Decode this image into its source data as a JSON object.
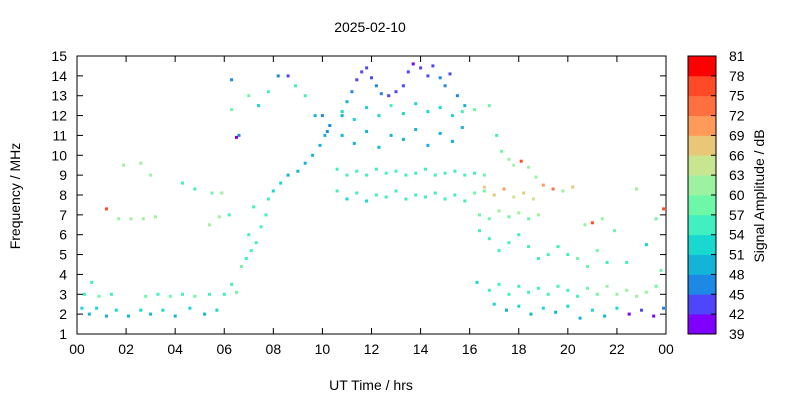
{
  "chart_data": {
    "type": "heatmap",
    "title": "2025-02-10",
    "xlabel": "UT Time / hrs",
    "ylabel": "Frequency / MHz",
    "colorbar_label": "Signal Amplitude / dB",
    "xlim": [
      0,
      24
    ],
    "ylim": [
      1,
      15
    ],
    "x_tick_labels": [
      "00",
      "02",
      "04",
      "06",
      "08",
      "10",
      "12",
      "14",
      "16",
      "18",
      "20",
      "22",
      "00"
    ],
    "y_tick_labels": [
      "1",
      "2",
      "3",
      "4",
      "5",
      "6",
      "7",
      "8",
      "9",
      "10",
      "11",
      "12",
      "13",
      "14",
      "15"
    ],
    "colorbar": {
      "min": 39,
      "max": 81,
      "tick_labels": [
        "39",
        "42",
        "45",
        "48",
        "51",
        "54",
        "57",
        "60",
        "63",
        "66",
        "69",
        "72",
        "75",
        "78",
        "81"
      ],
      "colors": [
        "#7f00ff",
        "#4f45fa",
        "#1e88e5",
        "#12b4d8",
        "#18d8d0",
        "#40f0c0",
        "#6cf8a8",
        "#9cf2a0",
        "#c8e690",
        "#e8c878",
        "#ff9a5a",
        "#ff7040",
        "#ff4a28",
        "#ff0000"
      ]
    },
    "grid": false,
    "series": [
      {
        "comment_x_hours_y_mhz_v_db": "",
        "points": [
          [
            0.2,
            2.3,
            51
          ],
          [
            0.5,
            2.0,
            48
          ],
          [
            0.8,
            2.3,
            51
          ],
          [
            1.2,
            1.9,
            48
          ],
          [
            1.6,
            2.2,
            51
          ],
          [
            2.1,
            1.9,
            48
          ],
          [
            2.6,
            2.2,
            51
          ],
          [
            3.0,
            2.0,
            48
          ],
          [
            3.5,
            2.2,
            51
          ],
          [
            4.0,
            1.9,
            48
          ],
          [
            4.6,
            2.3,
            51
          ],
          [
            5.2,
            2.0,
            48
          ],
          [
            5.7,
            2.2,
            51
          ],
          [
            0.3,
            3.0,
            55
          ],
          [
            0.9,
            2.9,
            57
          ],
          [
            1.4,
            3.0,
            55
          ],
          [
            2.8,
            2.9,
            57
          ],
          [
            3.3,
            3.0,
            55
          ],
          [
            3.8,
            2.9,
            57
          ],
          [
            4.3,
            3.0,
            55
          ],
          [
            4.8,
            2.9,
            57
          ],
          [
            5.4,
            3.0,
            55
          ],
          [
            6.0,
            3.0,
            55
          ],
          [
            6.5,
            3.1,
            57
          ],
          [
            0.6,
            3.6,
            55
          ],
          [
            6.3,
            3.5,
            55
          ],
          [
            6.7,
            4.4,
            57
          ],
          [
            6.9,
            4.8,
            55
          ],
          [
            7.1,
            5.2,
            54
          ],
          [
            7.3,
            5.6,
            55
          ],
          [
            7.0,
            6.0,
            54
          ],
          [
            7.5,
            6.4,
            54
          ],
          [
            7.7,
            7.0,
            55
          ],
          [
            7.2,
            7.4,
            54
          ],
          [
            7.8,
            7.8,
            54
          ],
          [
            8.0,
            8.2,
            51
          ],
          [
            8.3,
            8.6,
            51
          ],
          [
            8.6,
            9.0,
            48
          ],
          [
            9.0,
            9.2,
            48
          ],
          [
            9.3,
            9.6,
            48
          ],
          [
            9.6,
            10.0,
            48
          ],
          [
            9.9,
            10.5,
            48
          ],
          [
            10.1,
            11.0,
            48
          ],
          [
            10.3,
            11.5,
            45
          ],
          [
            10.0,
            12.0,
            45
          ],
          [
            1.2,
            7.3,
            75
          ],
          [
            1.7,
            6.8,
            60
          ],
          [
            2.2,
            6.8,
            60
          ],
          [
            2.7,
            6.8,
            60
          ],
          [
            3.2,
            6.9,
            60
          ],
          [
            1.9,
            9.5,
            60
          ],
          [
            2.6,
            9.6,
            60
          ],
          [
            3.0,
            9.0,
            60
          ],
          [
            4.3,
            8.6,
            54
          ],
          [
            4.8,
            8.3,
            54
          ],
          [
            5.5,
            8.1,
            57
          ],
          [
            5.9,
            8.1,
            60
          ],
          [
            6.2,
            7.0,
            54
          ],
          [
            5.4,
            6.5,
            60
          ],
          [
            5.8,
            6.9,
            60
          ],
          [
            6.3,
            12.3,
            57
          ],
          [
            6.6,
            11.0,
            45
          ],
          [
            7.0,
            13.0,
            57
          ],
          [
            7.4,
            12.5,
            51
          ],
          [
            7.8,
            13.2,
            54
          ],
          [
            8.2,
            14.0,
            45
          ],
          [
            8.6,
            14.0,
            42
          ],
          [
            8.9,
            13.5,
            54
          ],
          [
            9.3,
            13.0,
            54
          ],
          [
            9.7,
            12.0,
            48
          ],
          [
            10.2,
            11.2,
            45
          ],
          [
            6.3,
            13.8,
            45
          ],
          [
            6.5,
            10.9,
            39
          ],
          [
            10.8,
            12.0,
            48
          ],
          [
            11.0,
            12.7,
            48
          ],
          [
            11.2,
            13.2,
            45
          ],
          [
            11.4,
            13.8,
            42
          ],
          [
            11.6,
            14.2,
            42
          ],
          [
            11.8,
            14.4,
            42
          ],
          [
            12.0,
            13.9,
            42
          ],
          [
            12.2,
            13.5,
            45
          ],
          [
            12.4,
            13.1,
            45
          ],
          [
            12.7,
            13.0,
            42
          ],
          [
            13.0,
            13.2,
            42
          ],
          [
            13.3,
            13.5,
            42
          ],
          [
            13.5,
            14.2,
            42
          ],
          [
            13.7,
            14.6,
            39
          ],
          [
            14.0,
            14.4,
            42
          ],
          [
            14.3,
            14.0,
            42
          ],
          [
            14.5,
            14.5,
            42
          ],
          [
            14.8,
            13.9,
            45
          ],
          [
            15.0,
            13.5,
            45
          ],
          [
            15.2,
            14.1,
            42
          ],
          [
            15.5,
            13.0,
            45
          ],
          [
            15.8,
            12.5,
            48
          ],
          [
            10.6,
            9.3,
            54
          ],
          [
            11.0,
            9.0,
            54
          ],
          [
            11.4,
            9.2,
            55
          ],
          [
            11.8,
            9.0,
            54
          ],
          [
            12.2,
            9.3,
            55
          ],
          [
            12.6,
            9.1,
            54
          ],
          [
            13.0,
            9.2,
            55
          ],
          [
            13.4,
            9.0,
            54
          ],
          [
            13.8,
            9.1,
            55
          ],
          [
            14.2,
            9.3,
            54
          ],
          [
            14.6,
            9.0,
            55
          ],
          [
            15.0,
            9.1,
            54
          ],
          [
            15.4,
            9.2,
            55
          ],
          [
            15.8,
            9.0,
            54
          ],
          [
            16.2,
            9.1,
            55
          ],
          [
            16.6,
            9.0,
            57
          ],
          [
            10.6,
            8.2,
            54
          ],
          [
            11.0,
            7.8,
            51
          ],
          [
            11.4,
            8.1,
            54
          ],
          [
            11.8,
            7.7,
            51
          ],
          [
            12.2,
            8.0,
            54
          ],
          [
            12.6,
            7.9,
            54
          ],
          [
            13.0,
            8.2,
            55
          ],
          [
            13.4,
            7.8,
            54
          ],
          [
            13.8,
            8.0,
            55
          ],
          [
            14.2,
            7.9,
            54
          ],
          [
            14.6,
            8.1,
            55
          ],
          [
            15.0,
            7.8,
            54
          ],
          [
            15.4,
            8.0,
            55
          ],
          [
            15.8,
            7.7,
            54
          ],
          [
            16.2,
            8.1,
            57
          ],
          [
            16.6,
            8.2,
            57
          ],
          [
            10.8,
            11.0,
            48
          ],
          [
            11.3,
            10.6,
            48
          ],
          [
            11.8,
            11.2,
            48
          ],
          [
            12.3,
            10.4,
            48
          ],
          [
            12.8,
            11.0,
            48
          ],
          [
            13.3,
            10.8,
            48
          ],
          [
            13.8,
            11.3,
            48
          ],
          [
            14.3,
            10.5,
            48
          ],
          [
            14.8,
            11.1,
            48
          ],
          [
            15.3,
            10.7,
            48
          ],
          [
            15.7,
            11.4,
            48
          ],
          [
            10.8,
            12.2,
            51
          ],
          [
            11.3,
            11.8,
            51
          ],
          [
            11.8,
            12.4,
            51
          ],
          [
            12.3,
            12.0,
            51
          ],
          [
            12.8,
            12.5,
            54
          ],
          [
            13.3,
            12.1,
            51
          ],
          [
            13.8,
            12.6,
            51
          ],
          [
            14.3,
            12.2,
            51
          ],
          [
            14.8,
            12.4,
            51
          ],
          [
            15.3,
            12.0,
            51
          ],
          [
            15.7,
            12.2,
            54
          ],
          [
            16.2,
            12.3,
            57
          ],
          [
            16.8,
            12.5,
            57
          ],
          [
            17.1,
            11.0,
            54
          ],
          [
            17.3,
            10.2,
            57
          ],
          [
            17.6,
            9.8,
            60
          ],
          [
            17.8,
            9.5,
            60
          ],
          [
            18.1,
            9.7,
            75
          ],
          [
            18.4,
            9.4,
            60
          ],
          [
            18.7,
            8.9,
            60
          ],
          [
            19.0,
            8.5,
            69
          ],
          [
            19.4,
            8.3,
            72
          ],
          [
            19.8,
            8.2,
            60
          ],
          [
            20.2,
            8.4,
            66
          ],
          [
            16.4,
            7.0,
            57
          ],
          [
            16.8,
            6.8,
            57
          ],
          [
            17.2,
            7.2,
            60
          ],
          [
            17.6,
            6.9,
            57
          ],
          [
            18.0,
            7.1,
            60
          ],
          [
            18.4,
            6.8,
            57
          ],
          [
            18.8,
            7.0,
            60
          ],
          [
            16.6,
            8.4,
            66
          ],
          [
            17.0,
            8.0,
            66
          ],
          [
            17.4,
            8.3,
            69
          ],
          [
            17.8,
            7.9,
            63
          ],
          [
            18.2,
            8.1,
            66
          ],
          [
            18.6,
            7.8,
            63
          ],
          [
            16.4,
            6.2,
            54
          ],
          [
            16.8,
            5.8,
            54
          ],
          [
            17.2,
            5.2,
            54
          ],
          [
            17.6,
            5.6,
            54
          ],
          [
            18.0,
            6.0,
            54
          ],
          [
            18.4,
            5.4,
            54
          ],
          [
            18.8,
            4.8,
            54
          ],
          [
            19.2,
            5.0,
            54
          ],
          [
            19.6,
            5.4,
            54
          ],
          [
            20.0,
            5.0,
            55
          ],
          [
            20.4,
            4.8,
            57
          ],
          [
            20.8,
            4.4,
            57
          ],
          [
            21.2,
            5.2,
            57
          ],
          [
            21.6,
            4.6,
            54
          ],
          [
            16.3,
            3.6,
            51
          ],
          [
            16.8,
            3.2,
            54
          ],
          [
            17.2,
            3.5,
            55
          ],
          [
            17.6,
            3.0,
            54
          ],
          [
            18.0,
            3.4,
            55
          ],
          [
            18.4,
            3.1,
            54
          ],
          [
            18.8,
            3.3,
            55
          ],
          [
            19.2,
            3.0,
            54
          ],
          [
            19.6,
            3.4,
            55
          ],
          [
            20.0,
            3.2,
            54
          ],
          [
            20.4,
            2.9,
            55
          ],
          [
            20.8,
            3.3,
            57
          ],
          [
            21.2,
            3.0,
            57
          ],
          [
            21.6,
            3.4,
            60
          ],
          [
            22.0,
            3.0,
            60
          ],
          [
            22.4,
            3.2,
            60
          ],
          [
            22.8,
            2.9,
            60
          ],
          [
            23.2,
            3.1,
            60
          ],
          [
            23.6,
            3.4,
            57
          ],
          [
            17.0,
            2.5,
            51
          ],
          [
            17.5,
            2.2,
            48
          ],
          [
            18.0,
            2.4,
            51
          ],
          [
            18.5,
            2.0,
            48
          ],
          [
            19.0,
            2.3,
            51
          ],
          [
            19.5,
            2.1,
            48
          ],
          [
            20.0,
            2.4,
            51
          ],
          [
            20.5,
            1.8,
            48
          ],
          [
            21.0,
            2.2,
            51
          ],
          [
            21.5,
            1.9,
            48
          ],
          [
            22.0,
            2.3,
            51
          ],
          [
            22.5,
            2.0,
            39
          ],
          [
            23.0,
            2.2,
            42
          ],
          [
            23.5,
            1.9,
            39
          ],
          [
            23.9,
            2.3,
            45
          ],
          [
            21.0,
            6.6,
            75
          ],
          [
            20.7,
            6.5,
            60
          ],
          [
            21.4,
            6.8,
            60
          ],
          [
            21.9,
            6.2,
            57
          ],
          [
            22.8,
            8.3,
            60
          ],
          [
            23.6,
            6.8,
            57
          ],
          [
            23.9,
            7.3,
            75
          ],
          [
            23.8,
            4.2,
            57
          ],
          [
            22.4,
            4.6,
            54
          ],
          [
            23.2,
            5.5,
            51
          ]
        ]
      }
    ]
  }
}
